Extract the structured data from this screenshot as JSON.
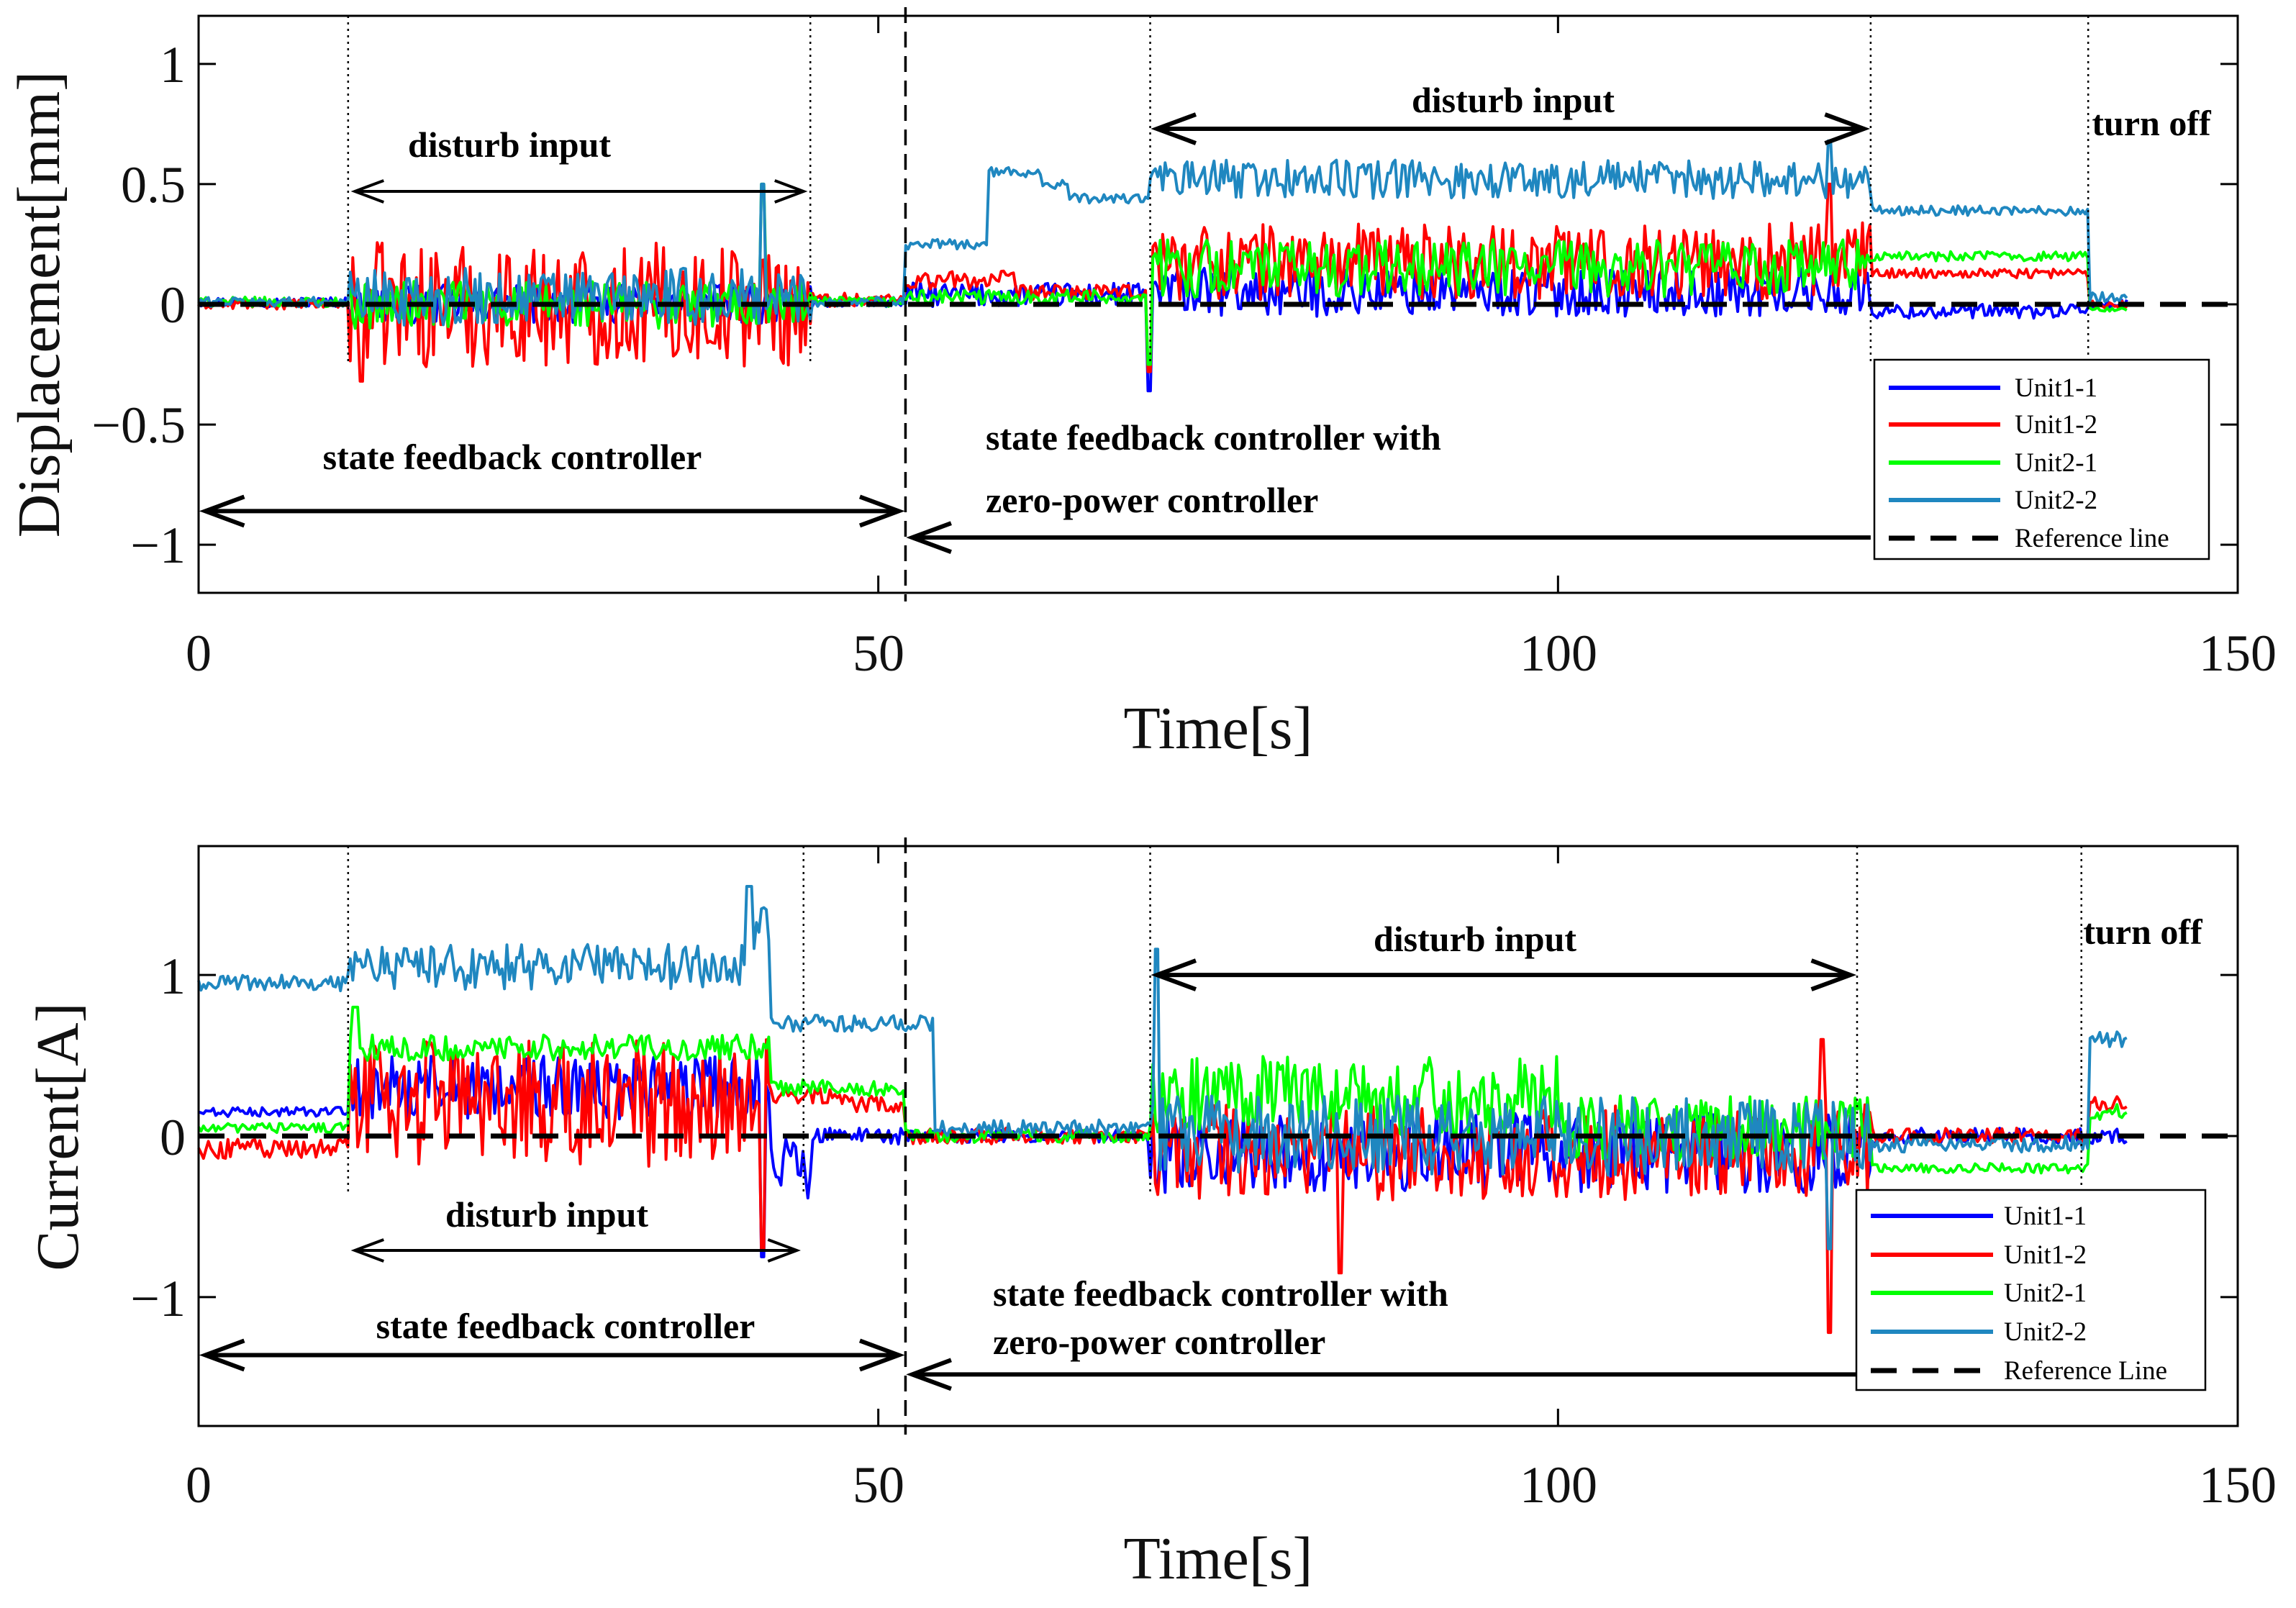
{
  "chart_data": [
    {
      "type": "line",
      "id": "displacement",
      "xlabel": "Time[s]",
      "ylabel": "Displacement[mm]",
      "xlim": [
        0,
        150
      ],
      "ylim": [
        -1.2,
        1.2
      ],
      "xticks": [
        0,
        50,
        100,
        150
      ],
      "yticks": [
        1,
        0.5,
        0,
        -0.5,
        -1
      ],
      "xtick_labels": [
        "0",
        "50",
        "100",
        "150"
      ],
      "ytick_labels": [
        "1",
        "0.5",
        "0",
        "−0.5",
        "−1"
      ],
      "grid": false,
      "legend_position": "lower-right",
      "legend": [
        "Unit1-1",
        "Unit1-2",
        "Unit2-1",
        "Unit2-2",
        "Reference line"
      ],
      "series_colors": {
        "Unit1-1": "#0000ff",
        "Unit1-2": "#ff0000",
        "Unit2-1": "#00ff00",
        "Unit2-2": "#1f87c0",
        "Reference line": "#000000"
      },
      "reference_value": 0,
      "dotted_lines_x": [
        11,
        45,
        70,
        123,
        139
      ],
      "dashed_divider_x": 52,
      "annotations": {
        "disturb_input_1": "disturb input",
        "disturb_input_2": "disturb input",
        "turn_off": "turn off",
        "state_feedback": "state feedback controller",
        "zero_power_line1": "state feedback controller with",
        "zero_power_line2": "zero-power controller"
      },
      "annotation_arrows": [
        {
          "from": 11.5,
          "to": 44.5,
          "y": 0.47,
          "kind": "double"
        },
        {
          "from": 70.5,
          "to": 122.5,
          "y": 0.73,
          "kind": "double"
        },
        {
          "from": 0.5,
          "to": 51.5,
          "y": -0.86,
          "kind": "double"
        },
        {
          "from": 123,
          "to": 52.5,
          "y": -0.97,
          "kind": "single"
        }
      ],
      "series_profile": [
        {
          "name": "Unit1-1",
          "segments": [
            [
              0,
              0.01,
              0.02
            ],
            [
              11,
              0.0,
              0.08
            ],
            [
              45,
              0.01,
              0.02
            ],
            [
              52,
              0.04,
              0.05
            ],
            [
              70,
              0.05,
              0.1
            ],
            [
              123,
              -0.03,
              0.03
            ],
            [
              139,
              0.0,
              0.02
            ],
            [
              142,
              0.0,
              0.0
            ]
          ],
          "spikes": [
            [
              70,
              -0.36
            ]
          ]
        },
        {
          "name": "Unit1-2",
          "segments": [
            [
              0,
              0.0,
              0.02
            ],
            [
              11,
              0.0,
              0.26
            ],
            [
              45,
              0.02,
              0.03
            ],
            [
              52,
              0.1,
              0.04
            ],
            [
              60,
              0.05,
              0.03
            ],
            [
              70,
              0.18,
              0.16
            ],
            [
              123,
              0.13,
              0.02
            ],
            [
              139,
              0.0,
              0.02
            ],
            [
              142,
              0.0,
              0.0
            ]
          ],
          "spikes": [
            [
              12,
              -0.32
            ],
            [
              70,
              -0.28
            ],
            [
              120,
              0.5
            ]
          ]
        },
        {
          "name": "Unit2-1",
          "segments": [
            [
              0,
              0.01,
              0.02
            ],
            [
              11,
              0.0,
              0.1
            ],
            [
              45,
              0.01,
              0.02
            ],
            [
              52,
              0.03,
              0.03
            ],
            [
              70,
              0.15,
              0.12
            ],
            [
              123,
              0.2,
              0.02
            ],
            [
              139,
              -0.02,
              0.01
            ],
            [
              142,
              0.0,
              0.0
            ]
          ],
          "spikes": [
            [
              41.5,
              0.5
            ],
            [
              70,
              -0.25
            ]
          ]
        },
        {
          "name": "Unit2-2",
          "segments": [
            [
              0,
              0.01,
              0.02
            ],
            [
              11,
              0.03,
              0.12
            ],
            [
              45,
              0.01,
              0.02
            ],
            [
              52,
              0.25,
              0.02
            ],
            [
              58,
              0.55,
              0.02
            ],
            [
              62,
              0.5,
              0.02
            ],
            [
              64,
              0.44,
              0.02
            ],
            [
              70,
              0.52,
              0.08
            ],
            [
              123,
              0.39,
              0.02
            ],
            [
              139,
              0.03,
              0.02
            ],
            [
              142,
              0.0,
              0.0
            ]
          ],
          "spikes": [
            [
              41.5,
              0.5
            ],
            [
              120,
              0.68
            ]
          ]
        }
      ]
    },
    {
      "type": "line",
      "id": "current",
      "xlabel": "Time[s]",
      "ylabel": "Current[A]",
      "xlim": [
        0,
        150
      ],
      "ylim": [
        -1.8,
        1.8
      ],
      "xticks": [
        0,
        50,
        100,
        150
      ],
      "yticks": [
        1,
        0,
        -1
      ],
      "xtick_labels": [
        "0",
        "50",
        "100",
        "150"
      ],
      "ytick_labels": [
        "1",
        "0",
        "−1"
      ],
      "grid": false,
      "legend_position": "lower-right",
      "legend": [
        "Unit1-1",
        "Unit1-2",
        "Unit2-1",
        "Unit2-2",
        "Reference Line"
      ],
      "series_colors": {
        "Unit1-1": "#0000ff",
        "Unit1-2": "#ff0000",
        "Unit2-1": "#00ff00",
        "Unit2-2": "#1f87c0",
        "Reference Line": "#000000"
      },
      "reference_value": 0,
      "dotted_lines_x": [
        11,
        44.5,
        70,
        122,
        138.5
      ],
      "dashed_divider_x": 52,
      "annotations": {
        "disturb_input_1": "disturb input",
        "disturb_input_2": "disturb input",
        "turn_off": "turn off",
        "state_feedback": "state feedback controller",
        "zero_power_line1": "state feedback controller with",
        "zero_power_line2": "zero-power controller"
      },
      "annotation_arrows": [
        {
          "from": 70.5,
          "to": 121.5,
          "y": 1.0,
          "kind": "double"
        },
        {
          "from": 11.5,
          "to": 44,
          "y": -0.71,
          "kind": "double"
        },
        {
          "from": 0.5,
          "to": 51.5,
          "y": -1.36,
          "kind": "double"
        },
        {
          "from": 122,
          "to": 52.5,
          "y": -1.48,
          "kind": "single"
        }
      ],
      "series_profile": [
        {
          "name": "Unit1-1",
          "segments": [
            [
              0,
              0.15,
              0.03
            ],
            [
              11,
              0.3,
              0.2
            ],
            [
              42,
              -0.2,
              0.2
            ],
            [
              45,
              0.0,
              0.05
            ],
            [
              52,
              0.0,
              0.04
            ],
            [
              70,
              -0.1,
              0.25
            ],
            [
              123,
              0.0,
              0.05
            ],
            [
              139,
              0.0,
              0.05
            ],
            [
              142,
              0.0,
              0.0
            ]
          ],
          "spikes": [
            [
              41.5,
              -0.75
            ]
          ]
        },
        {
          "name": "Unit1-2",
          "segments": [
            [
              0,
              -0.08,
              0.06
            ],
            [
              11,
              0.2,
              0.4
            ],
            [
              42,
              0.25,
              0.05
            ],
            [
              48,
              0.2,
              0.05
            ],
            [
              52,
              0.0,
              0.05
            ],
            [
              70,
              -0.1,
              0.3
            ],
            [
              123,
              0.0,
              0.05
            ],
            [
              139,
              0.2,
              0.05
            ],
            [
              142,
              0.0,
              0.0
            ]
          ],
          "spikes": [
            [
              41.5,
              -0.7
            ],
            [
              84,
              -0.85
            ],
            [
              120,
              -1.22
            ],
            [
              119.5,
              0.6
            ]
          ]
        },
        {
          "name": "Unit2-1",
          "segments": [
            [
              0,
              0.05,
              0.03
            ],
            [
              11,
              0.55,
              0.08
            ],
            [
              42,
              0.3,
              0.05
            ],
            [
              52,
              0.0,
              0.04
            ],
            [
              70,
              0.25,
              0.25
            ],
            [
              100,
              0.05,
              0.2
            ],
            [
              123,
              -0.2,
              0.03
            ],
            [
              139,
              0.15,
              0.05
            ],
            [
              142,
              0.0,
              0.0
            ]
          ],
          "spikes": [
            [
              11.5,
              0.8
            ]
          ]
        },
        {
          "name": "Unit2-2",
          "segments": [
            [
              0,
              0.95,
              0.05
            ],
            [
              11,
              1.05,
              0.14
            ],
            [
              41,
              1.3,
              0.12
            ],
            [
              42,
              0.7,
              0.05
            ],
            [
              52,
              0.7,
              0.05
            ],
            [
              54,
              0.05,
              0.05
            ],
            [
              70,
              0.0,
              0.25
            ],
            [
              123,
              -0.05,
              0.05
            ],
            [
              139,
              0.6,
              0.05
            ],
            [
              142,
              0.0,
              0.0
            ]
          ],
          "spikes": [
            [
              40.5,
              1.55
            ],
            [
              70.5,
              1.16
            ],
            [
              120,
              -0.7
            ]
          ]
        }
      ]
    }
  ]
}
